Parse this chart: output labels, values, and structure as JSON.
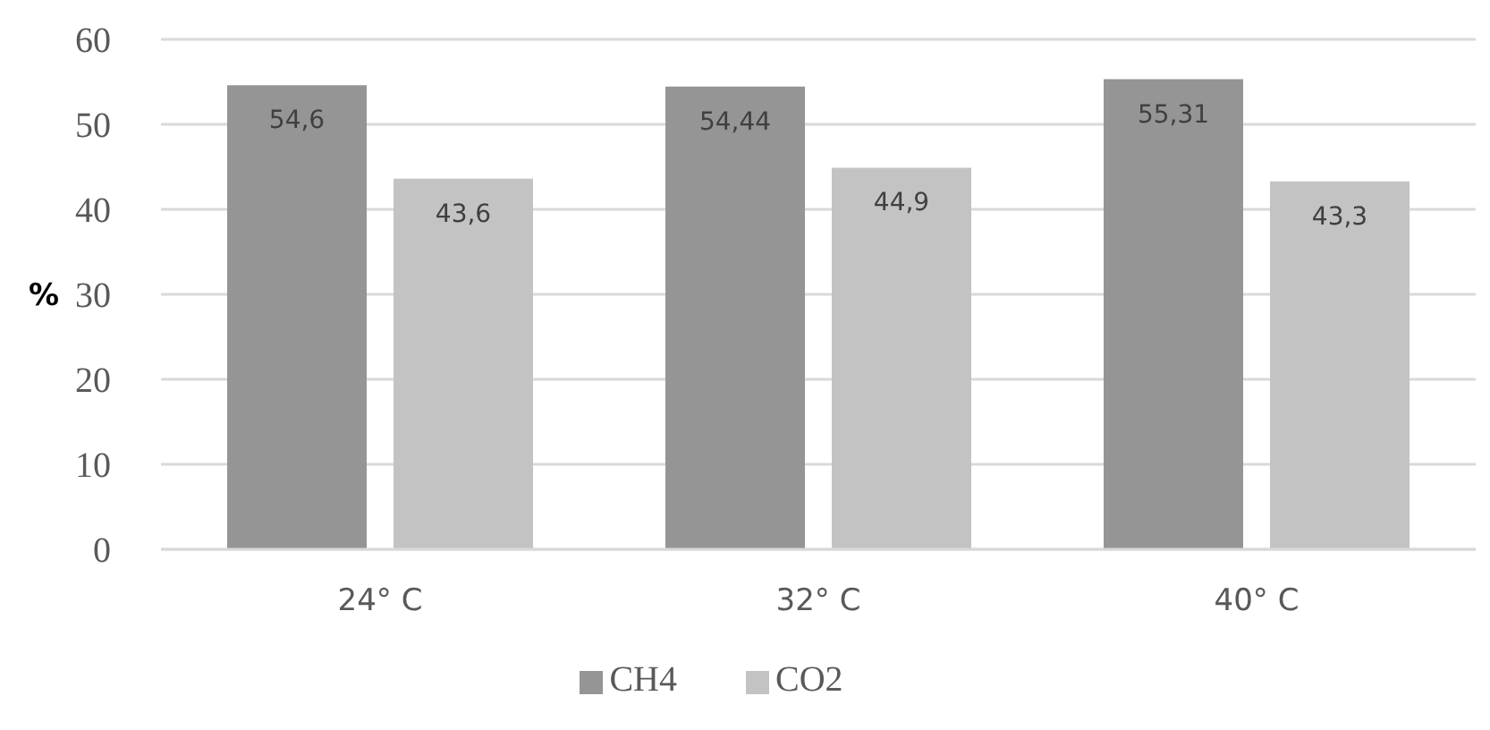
{
  "chart_data": {
    "type": "bar",
    "ylabel": "%",
    "categories": [
      "24° C",
      "32° C",
      "40° C"
    ],
    "series": [
      {
        "name": "CH4",
        "color": "#959595",
        "values": [
          54.6,
          54.44,
          55.31
        ],
        "value_labels": [
          "54,6",
          "54,44",
          "55,31"
        ]
      },
      {
        "name": "CO2",
        "color": "#c3c3c3",
        "values": [
          43.6,
          44.9,
          43.3
        ],
        "value_labels": [
          "43,6",
          "44,9",
          "43,3"
        ]
      }
    ],
    "ylim": [
      0,
      60
    ],
    "yticks": [
      0,
      10,
      20,
      30,
      40,
      50,
      60
    ],
    "grid": "y",
    "legend": "bottom"
  }
}
